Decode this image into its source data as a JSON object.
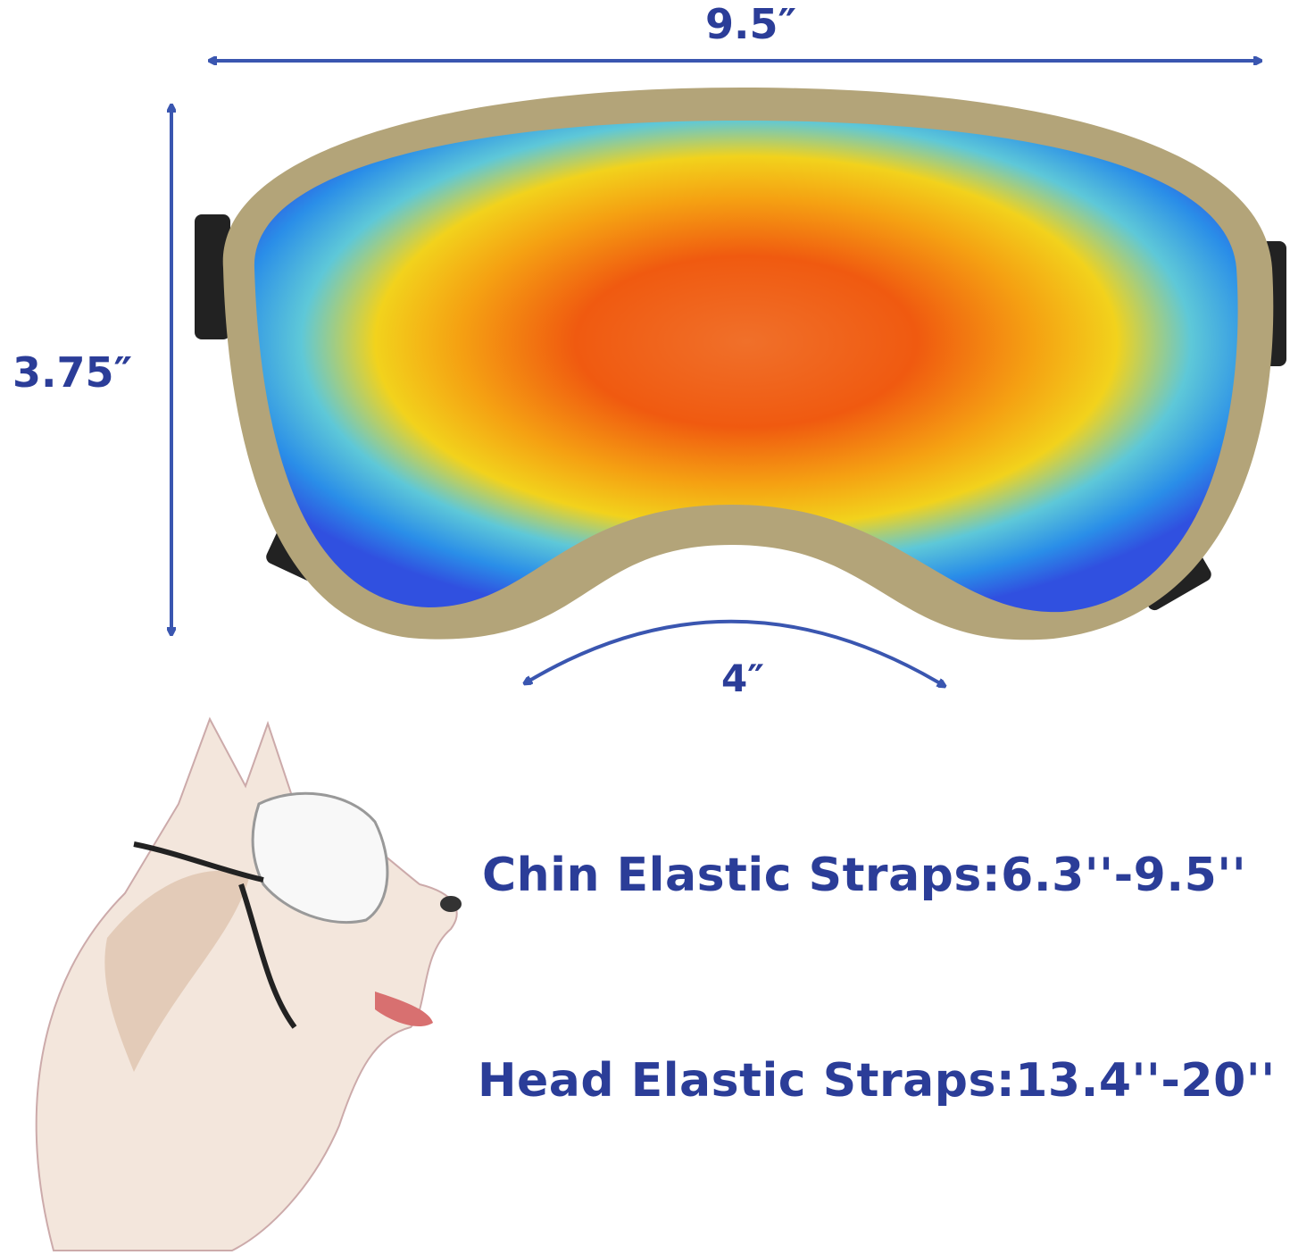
{
  "dimensions": {
    "width_label": "9.5″",
    "height_label": "3.75″",
    "nose_bridge_label": "4″"
  },
  "straps": {
    "chin": "Chin Elastic Straps:6.3''-9.5''",
    "head": "Head Elastic Straps:13.4''-20''"
  },
  "colors": {
    "label_text": "#2b3d98",
    "arrow": "#3a56b0",
    "frame": "#b3a479"
  }
}
